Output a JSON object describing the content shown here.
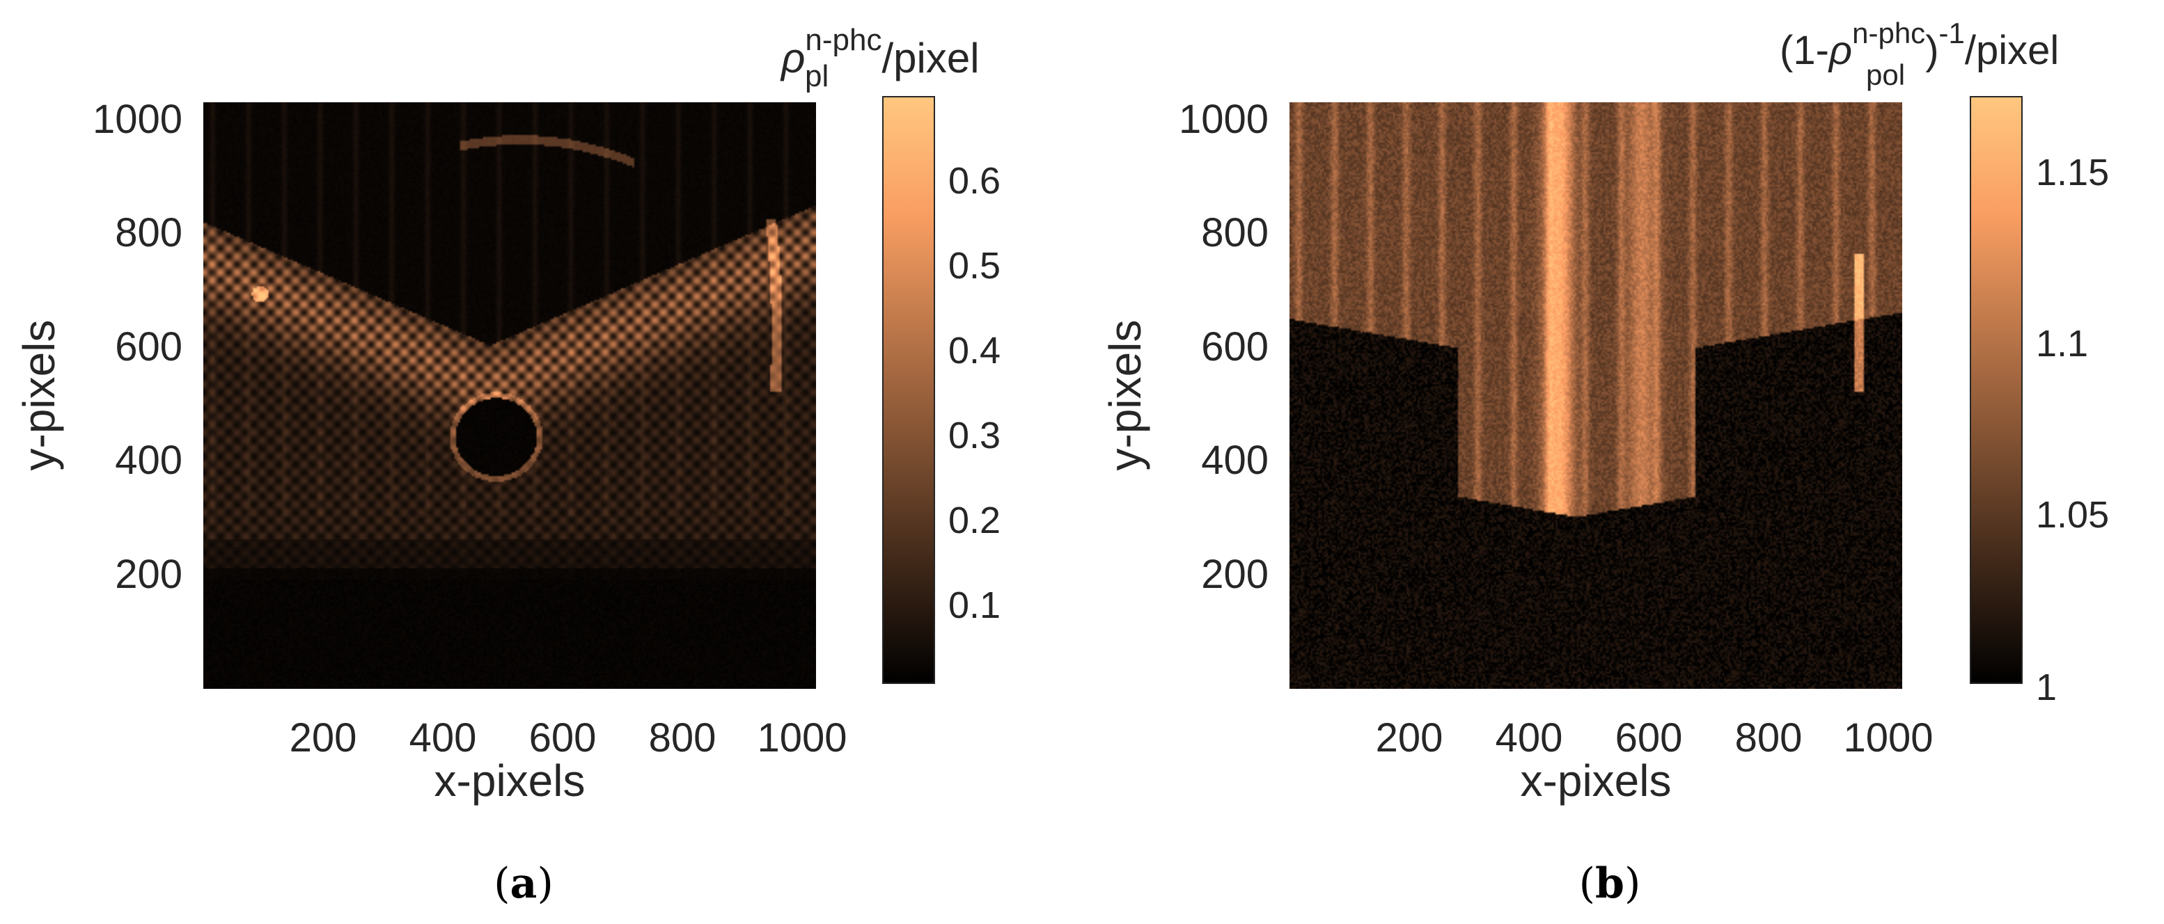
{
  "chart_data": [
    {
      "type": "heatmap",
      "panel_label": "(a)",
      "panel_letter": "a",
      "xlabel": "x-pixels",
      "ylabel": "y-pixels",
      "xlim": [
        1,
        1024
      ],
      "ylim": [
        1,
        1024
      ],
      "xticks": [
        200,
        400,
        600,
        800,
        1000
      ],
      "xtick_labels": [
        "200",
        "400",
        "600",
        "800",
        "1000"
      ],
      "yticks": [
        200,
        400,
        600,
        800,
        1000
      ],
      "ytick_labels": [
        "200",
        "400",
        "600",
        "800",
        "1000"
      ],
      "colorbar": {
        "label": "ρ_pl^n-phc/pixel",
        "label_symbol": "ρ",
        "label_superscript": "n-phc",
        "label_subscript": "pl",
        "label_suffix": "/pixel",
        "range": [
          0.01,
          0.7
        ],
        "ticks": [
          0.1,
          0.2,
          0.3,
          0.4,
          0.5,
          0.6
        ],
        "tick_labels": [
          "0.1",
          "0.2",
          "0.3",
          "0.4",
          "0.5",
          "0.6"
        ],
        "colormap": "copper"
      },
      "features": {
        "band_value": 0.55,
        "hole_center": [
          490,
          440
        ],
        "hole_radius": 68,
        "illuminated_bottom_y": 210,
        "grid_spacing_pixels": 28
      }
    },
    {
      "type": "heatmap",
      "panel_label": "(b)",
      "panel_letter": "b",
      "xlabel": "x-pixels",
      "ylabel": "y-pixels",
      "xlim": [
        1,
        1024
      ],
      "ylim": [
        1,
        1024
      ],
      "xticks": [
        200,
        400,
        600,
        800,
        1000
      ],
      "xtick_labels": [
        "200",
        "400",
        "600",
        "800",
        "1000"
      ],
      "yticks": [
        200,
        400,
        600,
        800,
        1000
      ],
      "ytick_labels": [
        "200",
        "400",
        "600",
        "800",
        "1000"
      ],
      "colorbar": {
        "label": "(1-ρ_pol^n-phc)^-1/pixel",
        "label_prefix": "(1-",
        "label_symbol": "ρ",
        "label_superscript": "n-phc",
        "label_subscript": "pol",
        "label_close": ")",
        "label_exponent": "-1",
        "label_suffix": "/pixel",
        "range": [
          1.0,
          1.17
        ],
        "ticks": [
          1,
          1.05,
          1.1,
          1.15
        ],
        "tick_labels": [
          "1",
          "1.05",
          "1.1",
          "1.15"
        ],
        "colormap": "copper"
      },
      "features": {
        "vertical_streak_x": 450,
        "illuminated_above_y": 600,
        "stripe_spacing_pixels": 30
      }
    }
  ],
  "colors": {
    "copper_min": "#000000",
    "copper_max": "#ffc77f",
    "axis_text": "#262626",
    "caption_text": "#000000"
  }
}
